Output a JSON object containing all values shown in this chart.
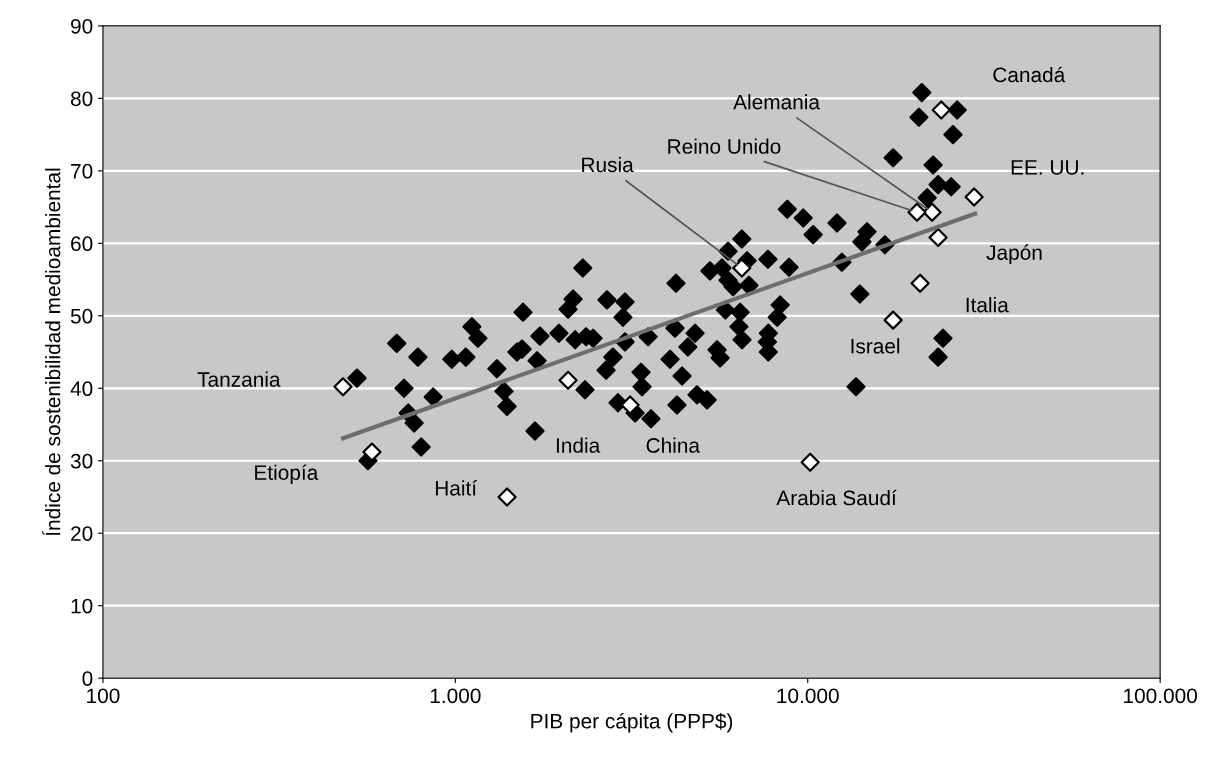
{
  "chart_data": {
    "type": "scatter",
    "xlabel": "PIB per cápita (PPP$)",
    "ylabel": "Índice de sostenibilidad medioambiental",
    "log": "x",
    "grid": "y",
    "marker": "diamond",
    "xlim": [
      100,
      100000
    ],
    "xticks": [
      {
        "value": 100,
        "label": "100"
      },
      {
        "value": 1000,
        "label": "1.000"
      },
      {
        "value": 10000,
        "label": "10.000"
      },
      {
        "value": 100000,
        "label": "100.000"
      }
    ],
    "ylim": [
      0,
      90
    ],
    "yticks": [
      0,
      10,
      20,
      30,
      40,
      50,
      60,
      70,
      80,
      90
    ],
    "series": [
      {
        "color": "#000000",
        "x": [
          526,
          682,
          783,
          715,
          865,
          735,
          764,
          800,
          565,
          977,
          1071,
          1114,
          1159,
          1312,
          1374,
          1402,
          1556,
          1496,
          1546,
          1706,
          1738,
          1968,
          1683,
          2158,
          2089,
          2188,
          2350,
          2460,
          2694,
          3030,
          2990,
          3030,
          2800,
          2678,
          3365,
          3388,
          3524,
          4067,
          2333,
          2894,
          3237,
          3591,
          4229,
          4200,
          4256,
          2300,
          8750,
          9710,
          10360,
          12110,
          14730,
          14250,
          16560,
          12500,
          6500,
          5940,
          6730,
          7710,
          8850,
          5280,
          5710,
          5940,
          6140,
          6810,
          14060,
          5840,
          6430,
          8350,
          8190,
          6380,
          6510,
          7730,
          7680,
          7730,
          4790,
          5530,
          5640,
          4570,
          4400,
          4850,
          5180,
          13710,
          24200,
          23440,
          21070,
          20680,
          26550,
          25830,
          17470,
          22690,
          23440,
          25530,
          21830
        ],
        "values": [
          41.4,
          46.2,
          44.3,
          40.0,
          38.8,
          36.6,
          35.2,
          31.9,
          30.0,
          44.0,
          44.3,
          48.5,
          46.9,
          42.7,
          39.6,
          37.5,
          50.5,
          45.0,
          45.4,
          43.8,
          47.2,
          47.6,
          34.1,
          52.3,
          50.9,
          46.7,
          47.1,
          46.9,
          52.2,
          51.9,
          49.8,
          46.4,
          44.3,
          42.5,
          42.2,
          40.2,
          47.1,
          44.0,
          39.8,
          38.0,
          36.6,
          35.8,
          54.5,
          48.3,
          37.7,
          56.6,
          64.7,
          63.5,
          61.2,
          62.8,
          61.6,
          60.2,
          59.8,
          57.4,
          60.6,
          58.9,
          57.6,
          57.8,
          56.7,
          56.2,
          56.6,
          54.9,
          54.0,
          54.2,
          53.0,
          50.8,
          50.5,
          51.5,
          49.8,
          48.5,
          46.7,
          47.6,
          46.4,
          45.0,
          47.6,
          45.3,
          44.2,
          45.7,
          41.7,
          39.1,
          38.4,
          40.2,
          46.9,
          44.3,
          80.8,
          77.4,
          78.4,
          75.0,
          71.8,
          70.8,
          68.1,
          67.8,
          66.3
        ]
      },
      {
        "color": "#ffffff",
        "x": [
          480,
          580,
          2089,
          3133,
          1402,
          6500,
          20840,
          17470,
          23440,
          22540,
          20420,
          29650,
          23930,
          10160
        ],
        "values": [
          40.2,
          31.2,
          41.1,
          37.7,
          25.0,
          56.6,
          54.5,
          49.4,
          60.8,
          64.3,
          64.3,
          66.4,
          78.4,
          29.8
        ]
      },
      {
        "type": "line",
        "marker": "none",
        "color": "#6e6e6e",
        "x": [
          480,
          29850
        ],
        "values": [
          33.1,
          64.1
        ]
      }
    ],
    "annotations": [
      {
        "text": "Tanzania",
        "x": 480,
        "y": 40.2
      },
      {
        "text": "Etiopía",
        "x": 580,
        "y": 31.2
      },
      "India",
      "China",
      {
        "text": "Haití",
        "x": 1402,
        "y": 25.0
      },
      {
        "text": "Rusia",
        "x": 6500,
        "y": 56.6
      },
      {
        "text": "Italia",
        "x": 20840,
        "y": 54.5
      },
      {
        "text": "Israel",
        "x": 17470,
        "y": 49.4
      },
      {
        "text": "Japón",
        "x": 23440,
        "y": 60.8
      },
      {
        "text": "Alemania",
        "x": 22540,
        "y": 64.3
      },
      {
        "text": "Reino Unido",
        "x": 20420,
        "y": 64.3
      },
      {
        "text": "EE. UU.",
        "x": 29650,
        "y": 66.4
      },
      {
        "text": "Canadá",
        "x": 23930,
        "y": 78.4
      },
      {
        "text": "Arabia Saudí",
        "x": 10160,
        "y": 29.8
      }
    ]
  }
}
